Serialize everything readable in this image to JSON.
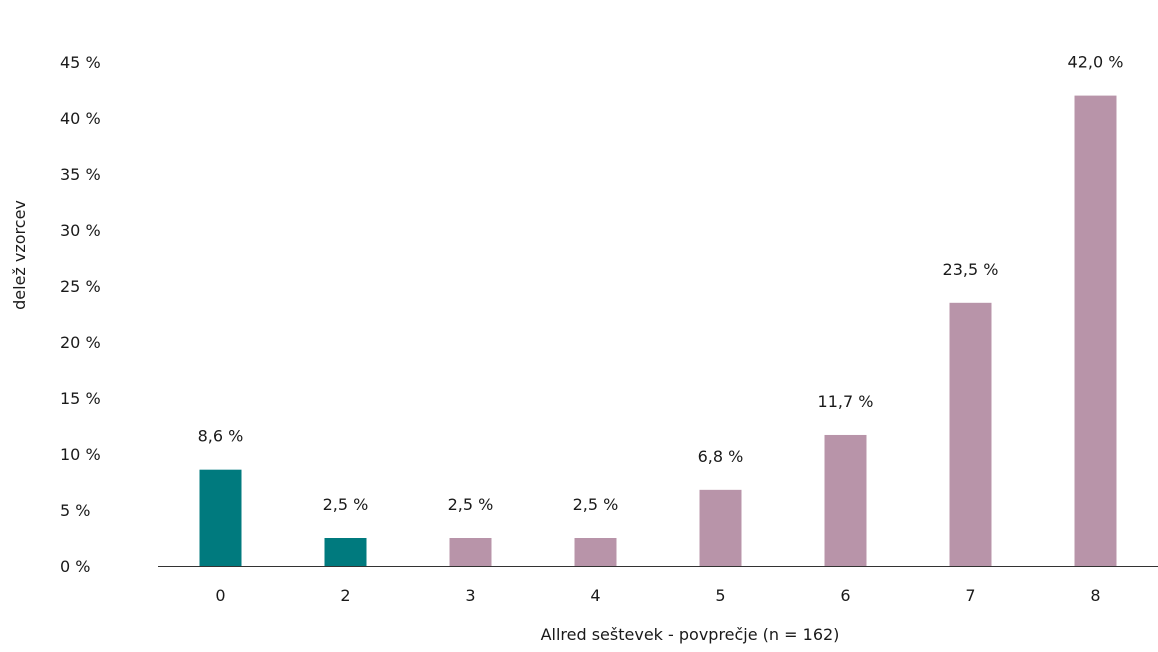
{
  "chart_data": {
    "type": "bar",
    "title": "",
    "xlabel": "Allred  seštevek - povprečje (n = 162)",
    "ylabel": "delež vzorcev",
    "categories": [
      "0",
      "2",
      "3",
      "4",
      "5",
      "6",
      "7",
      "8"
    ],
    "values": [
      8.6,
      2.5,
      2.5,
      2.5,
      6.8,
      11.7,
      23.5,
      42.0
    ],
    "data_labels": [
      "8,6 %",
      "2,5 %",
      "2,5 %",
      "2,5 %",
      "6,8 %",
      "11,7 %",
      "23,5 %",
      "42,0 %"
    ],
    "y_ticks": [
      0,
      5,
      10,
      15,
      20,
      25,
      30,
      35,
      40,
      45
    ],
    "y_tick_labels": [
      "0 %",
      "5 %",
      "10 %",
      "15 %",
      "20 %",
      "25 %",
      "30 %",
      "35 %",
      "40 %",
      "45 %"
    ],
    "ylim": [
      0,
      45
    ],
    "grid": false,
    "legend": "none",
    "bar_colors": [
      "#007a7e",
      "#007a7e",
      "#b894a9",
      "#b894a9",
      "#b894a9",
      "#b894a9",
      "#b894a9",
      "#b894a9"
    ],
    "axis_color": "#333333"
  }
}
